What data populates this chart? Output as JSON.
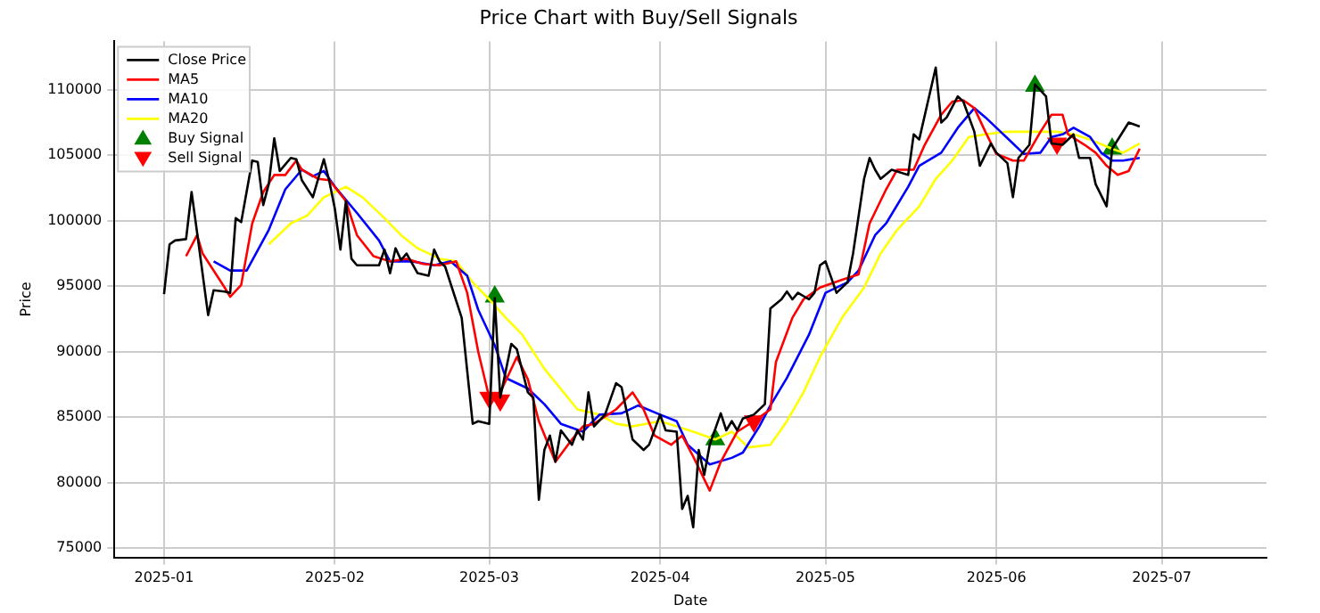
{
  "chart_data": {
    "type": "line",
    "title": "Price Chart with Buy/Sell Signals",
    "xlabel": "Date",
    "ylabel": "Price",
    "xlim": [
      "2024-12-23",
      "2025-07-20"
    ],
    "xticks": [
      {
        "value": "2025-01-01",
        "label": "2025-01"
      },
      {
        "value": "2025-02-01",
        "label": "2025-02"
      },
      {
        "value": "2025-03-01",
        "label": "2025-03"
      },
      {
        "value": "2025-04-01",
        "label": "2025-04"
      },
      {
        "value": "2025-05-01",
        "label": "2025-05"
      },
      {
        "value": "2025-06-01",
        "label": "2025-06"
      },
      {
        "value": "2025-07-01",
        "label": "2025-07"
      }
    ],
    "ylim": [
      74300,
      113700
    ],
    "yticks": [
      75000,
      80000,
      85000,
      90000,
      95000,
      100000,
      105000,
      110000
    ],
    "grid": true,
    "legend": "top left",
    "line_style": "solid",
    "series": [
      {
        "name": "Close Price",
        "color": "#000000",
        "x": [
          "2025-01-01",
          "2025-01-02",
          "2025-01-03",
          "2025-01-05",
          "2025-01-06",
          "2025-01-07",
          "2025-01-09",
          "2025-01-10",
          "2025-01-12",
          "2025-01-13",
          "2025-01-14",
          "2025-01-15",
          "2025-01-17",
          "2025-01-18",
          "2025-01-19",
          "2025-01-20",
          "2025-01-21",
          "2025-01-22",
          "2025-01-24",
          "2025-01-25",
          "2025-01-26",
          "2025-01-28",
          "2025-01-30",
          "2025-01-31",
          "2025-02-01",
          "2025-02-02",
          "2025-02-03",
          "2025-02-04",
          "2025-02-05",
          "2025-02-09",
          "2025-02-10",
          "2025-02-11",
          "2025-02-12",
          "2025-02-13",
          "2025-02-14",
          "2025-02-16",
          "2025-02-18",
          "2025-02-19",
          "2025-02-20",
          "2025-02-21",
          "2025-02-24",
          "2025-02-26",
          "2025-02-27",
          "2025-03-01",
          "2025-03-02",
          "2025-03-03",
          "2025-03-05",
          "2025-03-06",
          "2025-03-08",
          "2025-03-09",
          "2025-03-10",
          "2025-03-11",
          "2025-03-12",
          "2025-03-13",
          "2025-03-14",
          "2025-03-16",
          "2025-03-17",
          "2025-03-18",
          "2025-03-19",
          "2025-03-20",
          "2025-03-22",
          "2025-03-24",
          "2025-03-25",
          "2025-03-27",
          "2025-03-29",
          "2025-03-30",
          "2025-04-01",
          "2025-04-02",
          "2025-04-04",
          "2025-04-05",
          "2025-04-06",
          "2025-04-07",
          "2025-04-08",
          "2025-04-09",
          "2025-04-10",
          "2025-04-12",
          "2025-04-13",
          "2025-04-14",
          "2025-04-15",
          "2025-04-16",
          "2025-04-18",
          "2025-04-20",
          "2025-04-21",
          "2025-04-23",
          "2025-04-24",
          "2025-04-25",
          "2025-04-26",
          "2025-04-28",
          "2025-04-29",
          "2025-04-30",
          "2025-05-01",
          "2025-05-03",
          "2025-05-05",
          "2025-05-06",
          "2025-05-08",
          "2025-05-09",
          "2025-05-10",
          "2025-05-11",
          "2025-05-13",
          "2025-05-16",
          "2025-05-17",
          "2025-05-18",
          "2025-05-21",
          "2025-05-22",
          "2025-05-23",
          "2025-05-25",
          "2025-05-26",
          "2025-05-28",
          "2025-05-29",
          "2025-05-31",
          "2025-06-01",
          "2025-06-03",
          "2025-06-04",
          "2025-06-05",
          "2025-06-07",
          "2025-06-08",
          "2025-06-10",
          "2025-06-11",
          "2025-06-13",
          "2025-06-15",
          "2025-06-16",
          "2025-06-18",
          "2025-06-19",
          "2025-06-21",
          "2025-06-22",
          "2025-06-25",
          "2025-06-27"
        ],
        "values": [
          94400,
          98200,
          98500,
          98600,
          102200,
          99100,
          92800,
          94700,
          94600,
          94500,
          100200,
          99900,
          104600,
          104500,
          101200,
          102800,
          106300,
          103800,
          104800,
          104700,
          103100,
          101800,
          104700,
          103000,
          100900,
          97800,
          101500,
          97100,
          96600,
          96600,
          97800,
          96000,
          97900,
          97000,
          97500,
          96000,
          95800,
          97800,
          96900,
          96500,
          92600,
          84500,
          84700,
          84500,
          94100,
          86500,
          90600,
          90200,
          86900,
          86500,
          78700,
          82500,
          83600,
          81600,
          84000,
          82900,
          84000,
          83300,
          86900,
          84300,
          85200,
          87600,
          87300,
          83300,
          82500,
          82900,
          85200,
          84000,
          83900,
          78000,
          79000,
          76600,
          82500,
          80600,
          82900,
          85300,
          84000,
          84700,
          84000,
          84900,
          85200,
          86000,
          93300,
          94000,
          94600,
          94000,
          94500,
          94000,
          94500,
          96600,
          96900,
          94500,
          95300,
          97500,
          103200,
          104800,
          103900,
          103200,
          103900,
          103500,
          106600,
          106200,
          111700,
          107500,
          107900,
          109500,
          109100,
          106800,
          104200,
          105900,
          105200,
          104400,
          101800,
          104800,
          105800,
          110400,
          109500,
          105900,
          105800,
          106600,
          104800,
          104800,
          102800,
          101100,
          105500,
          107500,
          107200
        ]
      },
      {
        "name": "MA5",
        "color": "#ff0000",
        "x": [
          "2025-01-05",
          "2025-01-07",
          "2025-01-08",
          "2025-01-12",
          "2025-01-13",
          "2025-01-15",
          "2025-01-17",
          "2025-01-19",
          "2025-01-21",
          "2025-01-23",
          "2025-01-25",
          "2025-01-26",
          "2025-01-29",
          "2025-01-31",
          "2025-02-03",
          "2025-02-05",
          "2025-02-08",
          "2025-02-11",
          "2025-02-14",
          "2025-02-17",
          "2025-02-20",
          "2025-02-23",
          "2025-02-25",
          "2025-02-27",
          "2025-03-01",
          "2025-03-03",
          "2025-03-06",
          "2025-03-08",
          "2025-03-10",
          "2025-03-13",
          "2025-03-16",
          "2025-03-18",
          "2025-03-20",
          "2025-03-24",
          "2025-03-27",
          "2025-03-29",
          "2025-03-31",
          "2025-04-03",
          "2025-04-05",
          "2025-04-07",
          "2025-04-10",
          "2025-04-12",
          "2025-04-15",
          "2025-04-18",
          "2025-04-21",
          "2025-04-22",
          "2025-04-25",
          "2025-04-27",
          "2025-04-30",
          "2025-05-04",
          "2025-05-07",
          "2025-05-09",
          "2025-05-12",
          "2025-05-14",
          "2025-05-17",
          "2025-05-19",
          "2025-05-22",
          "2025-05-24",
          "2025-05-26",
          "2025-05-28",
          "2025-05-30",
          "2025-06-01",
          "2025-06-04",
          "2025-06-06",
          "2025-06-09",
          "2025-06-11",
          "2025-06-13",
          "2025-06-14",
          "2025-06-17",
          "2025-06-19",
          "2025-06-21",
          "2025-06-23",
          "2025-06-25",
          "2025-06-27"
        ],
        "values": [
          97300,
          98900,
          97500,
          94900,
          94200,
          95100,
          99800,
          102200,
          103500,
          103500,
          104600,
          103900,
          103200,
          103100,
          101500,
          98900,
          97300,
          96900,
          97100,
          96700,
          96600,
          96900,
          94500,
          90000,
          86500,
          86900,
          89600,
          87900,
          84700,
          81600,
          83300,
          84300,
          84500,
          85600,
          86900,
          85600,
          83600,
          82900,
          83600,
          82000,
          79400,
          81600,
          83900,
          84700,
          85600,
          89200,
          92600,
          94000,
          94900,
          95500,
          95900,
          99800,
          102400,
          103900,
          103900,
          105800,
          108100,
          109100,
          109200,
          108600,
          106800,
          105100,
          104600,
          104600,
          106800,
          108100,
          108100,
          106600,
          105800,
          105200,
          104200,
          103500,
          103800,
          105500
        ]
      },
      {
        "name": "MA10",
        "color": "#0000ff",
        "x": [
          "2025-01-10",
          "2025-01-13",
          "2025-01-16",
          "2025-01-20",
          "2025-01-23",
          "2025-01-26",
          "2025-01-28",
          "2025-01-30",
          "2025-02-01",
          "2025-02-05",
          "2025-02-09",
          "2025-02-11",
          "2025-02-15",
          "2025-02-19",
          "2025-02-22",
          "2025-02-25",
          "2025-02-27",
          "2025-03-02",
          "2025-03-04",
          "2025-03-08",
          "2025-03-11",
          "2025-03-14",
          "2025-03-18",
          "2025-03-21",
          "2025-03-25",
          "2025-03-28",
          "2025-04-01",
          "2025-04-04",
          "2025-04-06",
          "2025-04-10",
          "2025-04-14",
          "2025-04-16",
          "2025-04-19",
          "2025-04-21",
          "2025-04-24",
          "2025-04-28",
          "2025-05-01",
          "2025-05-05",
          "2025-05-07",
          "2025-05-10",
          "2025-05-12",
          "2025-05-16",
          "2025-05-18",
          "2025-05-22",
          "2025-05-25",
          "2025-05-28",
          "2025-05-30",
          "2025-06-01",
          "2025-06-04",
          "2025-06-06",
          "2025-06-09",
          "2025-06-11",
          "2025-06-13",
          "2025-06-15",
          "2025-06-18",
          "2025-06-20",
          "2025-06-22",
          "2025-06-24",
          "2025-06-27"
        ],
        "values": [
          96900,
          96200,
          96200,
          99300,
          102400,
          103900,
          103400,
          103800,
          102600,
          100600,
          98500,
          96900,
          96900,
          96600,
          96900,
          95800,
          93200,
          90500,
          88000,
          87200,
          86000,
          84500,
          83900,
          85200,
          85300,
          85900,
          85200,
          84700,
          82900,
          81400,
          81900,
          82300,
          84300,
          85900,
          88000,
          91300,
          94500,
          95300,
          96200,
          98900,
          99800,
          102600,
          104200,
          105200,
          107100,
          108600,
          107900,
          107100,
          105900,
          105100,
          105200,
          106400,
          106600,
          107100,
          106400,
          105200,
          104600,
          104600,
          104800
        ]
      },
      {
        "name": "MA20",
        "color": "#ffff00",
        "x": [
          "2025-01-20",
          "2025-01-24",
          "2025-01-27",
          "2025-01-30",
          "2025-02-03",
          "2025-02-06",
          "2025-02-10",
          "2025-02-13",
          "2025-02-16",
          "2025-02-20",
          "2025-02-23",
          "2025-02-26",
          "2025-03-01",
          "2025-03-04",
          "2025-03-07",
          "2025-03-11",
          "2025-03-17",
          "2025-03-21",
          "2025-03-24",
          "2025-03-27",
          "2025-04-01",
          "2025-04-04",
          "2025-04-07",
          "2025-04-11",
          "2025-04-14",
          "2025-04-17",
          "2025-04-21",
          "2025-04-24",
          "2025-04-27",
          "2025-04-30",
          "2025-05-04",
          "2025-05-08",
          "2025-05-11",
          "2025-05-14",
          "2025-05-18",
          "2025-05-21",
          "2025-05-24",
          "2025-05-27",
          "2025-05-30",
          "2025-06-03",
          "2025-06-07",
          "2025-06-12",
          "2025-06-15",
          "2025-06-18",
          "2025-06-22",
          "2025-06-24",
          "2025-06-27"
        ],
        "values": [
          98200,
          99800,
          100400,
          101800,
          102600,
          101800,
          100200,
          98900,
          97900,
          97100,
          96900,
          95300,
          94000,
          92600,
          91300,
          88700,
          85600,
          85200,
          84500,
          84300,
          84700,
          84300,
          83900,
          83300,
          83900,
          82700,
          82900,
          84700,
          86900,
          89600,
          92600,
          94900,
          97500,
          99300,
          101100,
          103200,
          104600,
          106400,
          106600,
          106800,
          106800,
          106800,
          106600,
          106200,
          105500,
          105200,
          105900
        ]
      },
      {
        "name": "Buy Signal",
        "type": "scatter",
        "marker": "triangle",
        "color": "#008000",
        "x": [
          "2025-03-02",
          "2025-04-11",
          "2025-06-08",
          "2025-06-22"
        ],
        "values": [
          94200,
          83300,
          110300,
          105500
        ]
      },
      {
        "name": "Sell Signal",
        "type": "scatter",
        "marker": "triangle-down",
        "color": "#ff0000",
        "x": [
          "2025-03-01",
          "2025-03-03",
          "2025-04-18",
          "2025-06-12"
        ],
        "values": [
          86500,
          86300,
          84700,
          105900
        ]
      }
    ]
  }
}
